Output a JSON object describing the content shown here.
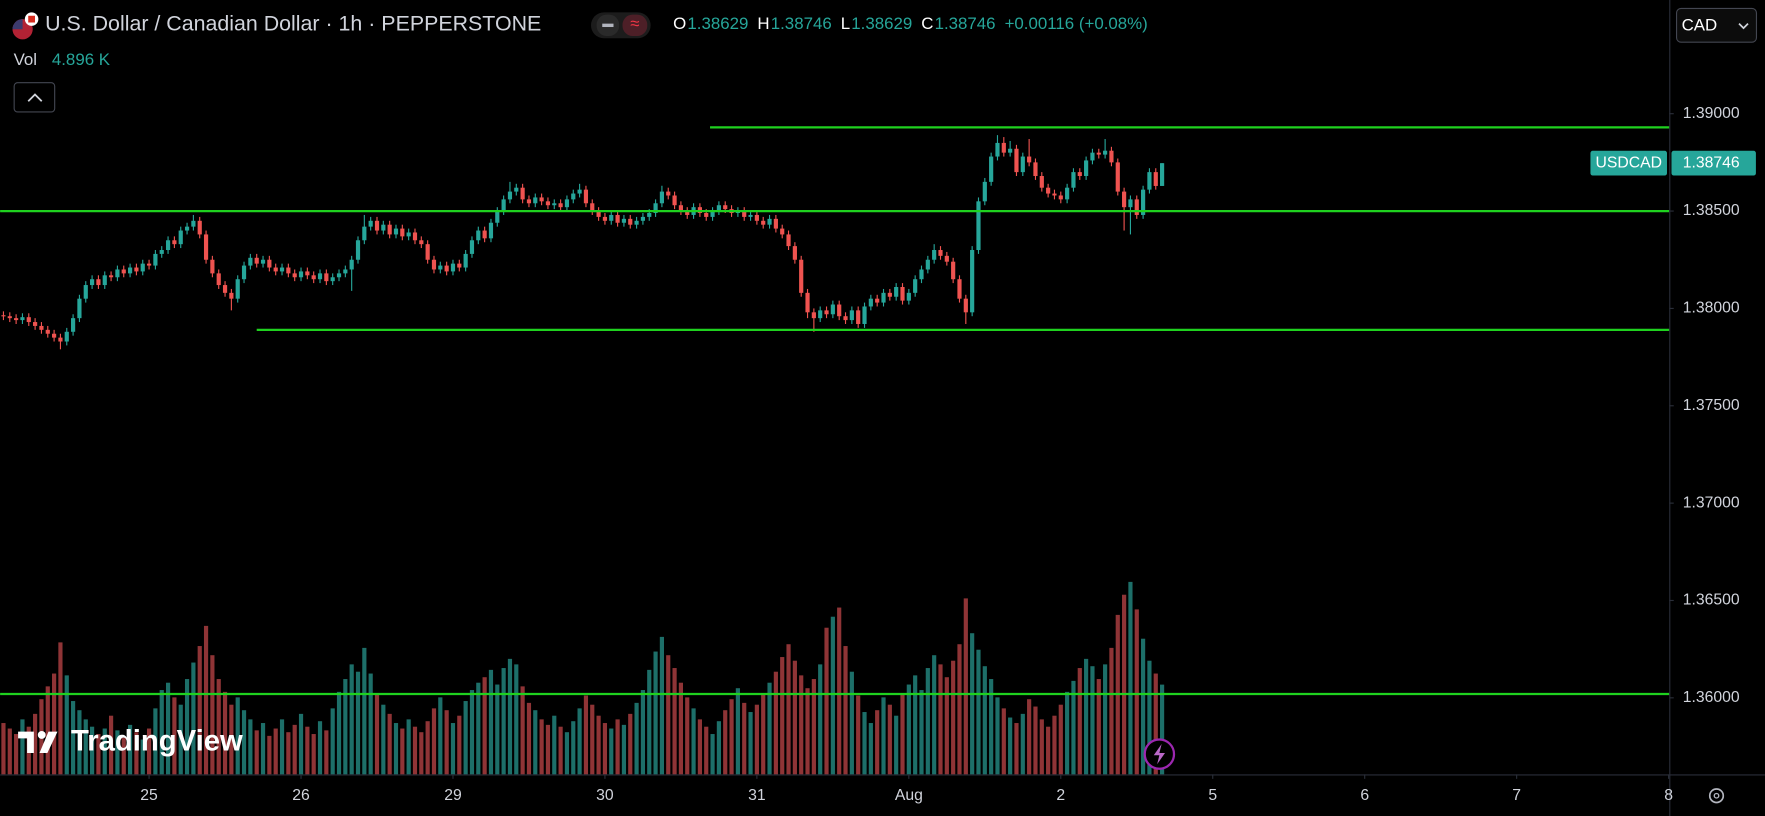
{
  "legend": {
    "title": "U.S. Dollar / Canadian Dollar · 1h · PEPPERSTONE",
    "ohlc": [
      {
        "label": "O",
        "value": 1.38629
      },
      {
        "label": "H",
        "value": 1.38746
      },
      {
        "label": "L",
        "value": 1.38629
      },
      {
        "label": "C",
        "value": 1.38746
      }
    ],
    "change": "+0.00116 (+0.08%)",
    "vol_label": "Vol",
    "vol_value": "4.896 K"
  },
  "currency": "CAD",
  "symbol_tag": "USDCAD",
  "logo": "TradingView",
  "chart_data": {
    "type": "candlestick",
    "up_color": "#26a69a",
    "down_color": "#ef5350",
    "volume_up_color": "#1d6f69",
    "volume_down_color": "#8f3436",
    "level_color": "#1fd11f",
    "grid": false,
    "xlim": [
      -0.53,
      263.1
    ],
    "xticks": [
      {
        "value": 23,
        "label": "25"
      },
      {
        "value": 47,
        "label": "26"
      },
      {
        "value": 71,
        "label": "29"
      },
      {
        "value": 95,
        "label": "30"
      },
      {
        "value": 119,
        "label": "31"
      },
      {
        "value": 143,
        "label": "Aug"
      },
      {
        "value": 167,
        "label": "2"
      },
      {
        "value": 191,
        "label": "5"
      },
      {
        "value": 215,
        "label": "6"
      },
      {
        "value": 239,
        "label": "7"
      },
      {
        "value": 263,
        "label": "8"
      }
    ],
    "ylim": [
      1.35607,
      1.39584
    ],
    "yticks": [
      {
        "value": 1.39,
        "label": "1.39000"
      },
      {
        "value": 1.385,
        "label": "1.38500"
      },
      {
        "value": 1.38,
        "label": "1.38000"
      },
      {
        "value": 1.375,
        "label": "1.37500"
      },
      {
        "value": 1.37,
        "label": "1.37000"
      },
      {
        "value": 1.365,
        "label": "1.36500"
      },
      {
        "value": 1.36,
        "label": "1.36000"
      }
    ],
    "y2lim": [
      0,
      14000
    ],
    "levels": [
      {
        "price": 1.3893,
        "start": 111.6
      },
      {
        "price": 1.385
      },
      {
        "price": 1.3789,
        "start": 40
      },
      {
        "price": 1.3602
      }
    ],
    "open": [
      1.37965,
      1.3796,
      1.3795,
      1.3794,
      1.37955,
      1.3793,
      1.3791,
      1.3789,
      1.3787,
      1.3785,
      1.3783,
      1.3788,
      1.3795,
      1.3805,
      1.3812,
      1.3815,
      1.3812,
      1.3817,
      1.3816,
      1.382,
      1.3818,
      1.3821,
      1.3819,
      1.3823,
      1.3822,
      1.3828,
      1.383,
      1.3835,
      1.3833,
      1.384,
      1.3842,
      1.3845,
      1.3838,
      1.3825,
      1.3818,
      1.3812,
      1.3808,
      1.3805,
      1.3815,
      1.3822,
      1.3826,
      1.3823,
      1.3825,
      1.3821,
      1.3819,
      1.3821,
      1.3818,
      1.3816,
      1.3819,
      1.3817,
      1.3815,
      1.3818,
      1.3814,
      1.3816,
      1.3818,
      1.382,
      1.3825,
      1.3835,
      1.3842,
      1.3845,
      1.384,
      1.3843,
      1.3838,
      1.3841,
      1.3837,
      1.3839,
      1.3835,
      1.3833,
      1.3825,
      1.382,
      1.3822,
      1.3819,
      1.3823,
      1.3821,
      1.3828,
      1.3835,
      1.384,
      1.3836,
      1.3844,
      1.385,
      1.3856,
      1.386,
      1.3862,
      1.3856,
      1.3854,
      1.3857,
      1.3855,
      1.3853,
      1.3854,
      1.3852,
      1.3856,
      1.3859,
      1.3861,
      1.3854,
      1.385,
      1.3847,
      1.3845,
      1.3848,
      1.3844,
      1.3846,
      1.3843,
      1.3845,
      1.3847,
      1.3849,
      1.3854,
      1.386,
      1.3858,
      1.3853,
      1.385,
      1.3848,
      1.3852,
      1.3849,
      1.3847,
      1.385,
      1.3853,
      1.3851,
      1.3849,
      1.385,
      1.3847,
      1.3848,
      1.3845,
      1.3843,
      1.3846,
      1.3841,
      1.3838,
      1.3832,
      1.3825,
      1.3808,
      1.3798,
      1.3795,
      1.3799,
      1.3797,
      1.3802,
      1.3796,
      1.3794,
      1.3799,
      1.3792,
      1.3801,
      1.3805,
      1.3803,
      1.3808,
      1.3806,
      1.3811,
      1.3804,
      1.3808,
      1.3815,
      1.382,
      1.3825,
      1.383,
      1.3827,
      1.3824,
      1.3815,
      1.3805,
      1.3798,
      1.383,
      1.3855,
      1.3865,
      1.3878,
      1.3885,
      1.388,
      1.3882,
      1.387,
      1.3878,
      1.3875,
      1.3868,
      1.3862,
      1.3859,
      1.3858,
      1.3856,
      1.3862,
      1.387,
      1.3868,
      1.3876,
      1.388,
      1.3879,
      1.3881,
      1.3875,
      1.386,
      1.3852,
      1.3856,
      1.3848,
      1.3861,
      1.387,
      1.38629
    ],
    "high": [
      1.37985,
      1.3798,
      1.3797,
      1.37975,
      1.37975,
      1.3795,
      1.3793,
      1.3791,
      1.3789,
      1.3787,
      1.379,
      1.3797,
      1.3807,
      1.3814,
      1.3817,
      1.3817,
      1.3819,
      1.3819,
      1.3822,
      1.3822,
      1.3823,
      1.3823,
      1.3825,
      1.3825,
      1.383,
      1.3832,
      1.3837,
      1.3837,
      1.3842,
      1.3844,
      1.3848,
      1.3847,
      1.384,
      1.3827,
      1.382,
      1.3814,
      1.381,
      1.3817,
      1.3824,
      1.3828,
      1.3828,
      1.3827,
      1.3827,
      1.3823,
      1.3823,
      1.3823,
      1.382,
      1.3821,
      1.3821,
      1.3819,
      1.382,
      1.382,
      1.3818,
      1.382,
      1.3822,
      1.3827,
      1.3837,
      1.3848,
      1.3847,
      1.3847,
      1.3845,
      1.3845,
      1.3843,
      1.3843,
      1.3841,
      1.3841,
      1.3837,
      1.3835,
      1.3827,
      1.3824,
      1.3824,
      1.3825,
      1.3825,
      1.383,
      1.3837,
      1.3842,
      1.3842,
      1.3846,
      1.3852,
      1.3858,
      1.3865,
      1.3864,
      1.3864,
      1.3858,
      1.3859,
      1.3859,
      1.3857,
      1.3856,
      1.3856,
      1.3858,
      1.3861,
      1.3864,
      1.3863,
      1.3856,
      1.3852,
      1.3849,
      1.385,
      1.385,
      1.3848,
      1.3848,
      1.3847,
      1.3849,
      1.3851,
      1.3856,
      1.3863,
      1.3862,
      1.386,
      1.3855,
      1.3852,
      1.3854,
      1.3854,
      1.3851,
      1.3852,
      1.3855,
      1.3855,
      1.3853,
      1.3852,
      1.3852,
      1.385,
      1.385,
      1.3847,
      1.3848,
      1.3848,
      1.3843,
      1.384,
      1.3834,
      1.3827,
      1.381,
      1.38,
      1.3801,
      1.3801,
      1.3804,
      1.3804,
      1.3798,
      1.3801,
      1.3801,
      1.3803,
      1.3807,
      1.3807,
      1.381,
      1.381,
      1.3813,
      1.3813,
      1.381,
      1.3817,
      1.3822,
      1.3827,
      1.3833,
      1.3832,
      1.3829,
      1.3826,
      1.3817,
      1.3807,
      1.3832,
      1.3857,
      1.3867,
      1.388,
      1.3889,
      1.3888,
      1.3886,
      1.3884,
      1.388,
      1.3887,
      1.3877,
      1.387,
      1.3864,
      1.3861,
      1.386,
      1.3864,
      1.3872,
      1.3872,
      1.3878,
      1.3882,
      1.3882,
      1.3887,
      1.3883,
      1.3877,
      1.3862,
      1.3858,
      1.3858,
      1.3863,
      1.3872,
      1.3872,
      1.38746
    ],
    "low": [
      1.3794,
      1.3793,
      1.3792,
      1.3792,
      1.3791,
      1.3789,
      1.3787,
      1.3785,
      1.3783,
      1.3779,
      1.3781,
      1.3786,
      1.3793,
      1.3803,
      1.381,
      1.381,
      1.381,
      1.3814,
      1.3814,
      1.3816,
      1.3816,
      1.3817,
      1.3817,
      1.382,
      1.382,
      1.3826,
      1.3828,
      1.3831,
      1.3831,
      1.3838,
      1.384,
      1.3836,
      1.3823,
      1.3816,
      1.381,
      1.3806,
      1.3799,
      1.3803,
      1.3813,
      1.382,
      1.3821,
      1.3821,
      1.3819,
      1.3817,
      1.3817,
      1.3816,
      1.3814,
      1.3814,
      1.3815,
      1.3813,
      1.3813,
      1.3812,
      1.3812,
      1.3814,
      1.3816,
      1.3809,
      1.3823,
      1.3833,
      1.384,
      1.3838,
      1.3838,
      1.3836,
      1.3836,
      1.3835,
      1.3835,
      1.3833,
      1.3831,
      1.3823,
      1.3818,
      1.3818,
      1.3817,
      1.3817,
      1.3819,
      1.3819,
      1.3826,
      1.3833,
      1.3834,
      1.3834,
      1.3842,
      1.3848,
      1.3854,
      1.3858,
      1.3854,
      1.3852,
      1.3852,
      1.3853,
      1.3851,
      1.3851,
      1.385,
      1.385,
      1.3854,
      1.3857,
      1.3852,
      1.3848,
      1.3845,
      1.3843,
      1.3843,
      1.3842,
      1.3842,
      1.3841,
      1.3841,
      1.3843,
      1.3845,
      1.3847,
      1.3852,
      1.3856,
      1.3851,
      1.3848,
      1.3846,
      1.3846,
      1.3847,
      1.3845,
      1.3845,
      1.3848,
      1.3849,
      1.3847,
      1.3847,
      1.3845,
      1.3845,
      1.3843,
      1.3841,
      1.3841,
      1.3839,
      1.3836,
      1.383,
      1.3823,
      1.3806,
      1.3795,
      1.3788,
      1.3793,
      1.3795,
      1.3795,
      1.3794,
      1.3792,
      1.3792,
      1.379,
      1.379,
      1.3799,
      1.3801,
      1.3801,
      1.3804,
      1.3804,
      1.3802,
      1.3802,
      1.3806,
      1.3813,
      1.3818,
      1.3823,
      1.3825,
      1.3822,
      1.3813,
      1.3803,
      1.3792,
      1.3796,
      1.3828,
      1.3853,
      1.3863,
      1.3876,
      1.3878,
      1.3878,
      1.3868,
      1.3868,
      1.3873,
      1.3866,
      1.386,
      1.3857,
      1.3856,
      1.3854,
      1.3854,
      1.386,
      1.3866,
      1.3866,
      1.3874,
      1.3877,
      1.3877,
      1.3873,
      1.3858,
      1.384,
      1.3838,
      1.3846,
      1.3846,
      1.3859,
      1.3861,
      1.38629
    ],
    "close": [
      1.3796,
      1.3795,
      1.3794,
      1.37955,
      1.3793,
      1.3791,
      1.3789,
      1.3787,
      1.3785,
      1.3783,
      1.3788,
      1.3795,
      1.3805,
      1.3812,
      1.3815,
      1.3812,
      1.3817,
      1.3816,
      1.382,
      1.3818,
      1.3821,
      1.3819,
      1.3823,
      1.3822,
      1.3828,
      1.383,
      1.3835,
      1.3833,
      1.384,
      1.3842,
      1.3845,
      1.3838,
      1.3825,
      1.3818,
      1.3812,
      1.3808,
      1.3805,
      1.3815,
      1.3822,
      1.3826,
      1.3823,
      1.3825,
      1.3821,
      1.3819,
      1.3821,
      1.3818,
      1.3816,
      1.3819,
      1.3817,
      1.3815,
      1.3818,
      1.3814,
      1.3816,
      1.3818,
      1.382,
      1.3825,
      1.3835,
      1.3842,
      1.3845,
      1.384,
      1.3843,
      1.3838,
      1.3841,
      1.3837,
      1.3839,
      1.3835,
      1.3833,
      1.3825,
      1.382,
      1.3822,
      1.3819,
      1.3823,
      1.3821,
      1.3828,
      1.3835,
      1.384,
      1.3836,
      1.3844,
      1.385,
      1.3856,
      1.386,
      1.3862,
      1.3856,
      1.3854,
      1.3857,
      1.3855,
      1.3853,
      1.3854,
      1.3852,
      1.3856,
      1.3859,
      1.3861,
      1.3854,
      1.385,
      1.3847,
      1.3845,
      1.3848,
      1.3844,
      1.3846,
      1.3843,
      1.3845,
      1.3847,
      1.3849,
      1.3854,
      1.386,
      1.3858,
      1.3853,
      1.385,
      1.3848,
      1.3852,
      1.3849,
      1.3847,
      1.385,
      1.3853,
      1.3851,
      1.3849,
      1.385,
      1.3847,
      1.3848,
      1.3845,
      1.3843,
      1.3846,
      1.3841,
      1.3838,
      1.3832,
      1.3825,
      1.3808,
      1.3798,
      1.3795,
      1.3799,
      1.3797,
      1.3802,
      1.3796,
      1.3794,
      1.3799,
      1.3792,
      1.3801,
      1.3805,
      1.3803,
      1.3808,
      1.3806,
      1.3811,
      1.3804,
      1.3808,
      1.3815,
      1.382,
      1.3825,
      1.383,
      1.3827,
      1.3824,
      1.3815,
      1.3805,
      1.3798,
      1.383,
      1.3855,
      1.3865,
      1.3878,
      1.3885,
      1.388,
      1.3882,
      1.387,
      1.3878,
      1.3875,
      1.3868,
      1.3862,
      1.3859,
      1.3858,
      1.3856,
      1.3862,
      1.387,
      1.3868,
      1.3876,
      1.388,
      1.3879,
      1.3881,
      1.3875,
      1.386,
      1.3852,
      1.3856,
      1.3848,
      1.3861,
      1.387,
      1.38629,
      1.38746
    ],
    "volume": [
      2800,
      2500,
      2200,
      3000,
      2600,
      3300,
      4100,
      4800,
      5500,
      7200,
      5400,
      4000,
      3500,
      3000,
      2600,
      2200,
      2500,
      3200,
      2400,
      2000,
      2700,
      2300,
      1900,
      2500,
      3600,
      4600,
      5000,
      4200,
      3800,
      5200,
      6100,
      7000,
      8100,
      6500,
      5200,
      4500,
      3800,
      4200,
      3500,
      3000,
      2400,
      2800,
      2100,
      2500,
      3000,
      2300,
      2700,
      3300,
      2600,
      2200,
      2900,
      2400,
      3600,
      4500,
      5200,
      6000,
      5600,
      6900,
      5500,
      4400,
      3800,
      3300,
      2800,
      2500,
      3000,
      2600,
      2300,
      2900,
      3600,
      4200,
      3500,
      2800,
      3200,
      4000,
      4600,
      5000,
      5300,
      5700,
      4900,
      5800,
      6300,
      6000,
      4800,
      3900,
      3500,
      3000,
      2700,
      3200,
      2600,
      2300,
      2900,
      3600,
      4300,
      3800,
      3200,
      2800,
      2500,
      3000,
      2700,
      3300,
      3900,
      4600,
      5700,
      6700,
      7500,
      6500,
      5800,
      5000,
      4200,
      3600,
      3000,
      2600,
      2200,
      2900,
      3500,
      4100,
      4700,
      3900,
      3400,
      3800,
      4400,
      5000,
      5600,
      6400,
      7100,
      6200,
      5400,
      4700,
      5200,
      6000,
      8000,
      8600,
      9100,
      7000,
      5600,
      4300,
      3400,
      2800,
      3500,
      4200,
      3800,
      3200,
      4400,
      4900,
      5400,
      4600,
      5800,
      6500,
      6000,
      5300,
      6200,
      7100,
      9600,
      7700,
      6800,
      5900,
      5200,
      4200,
      3600,
      3100,
      2800,
      3300,
      4100,
      3700,
      3000,
      2600,
      3200,
      3800,
      4500,
      5100,
      5800,
      6300,
      5900,
      5200,
      6000,
      6900,
      8700,
      9800,
      10500,
      9000,
      7400,
      6200,
      5500,
      4896
    ]
  }
}
